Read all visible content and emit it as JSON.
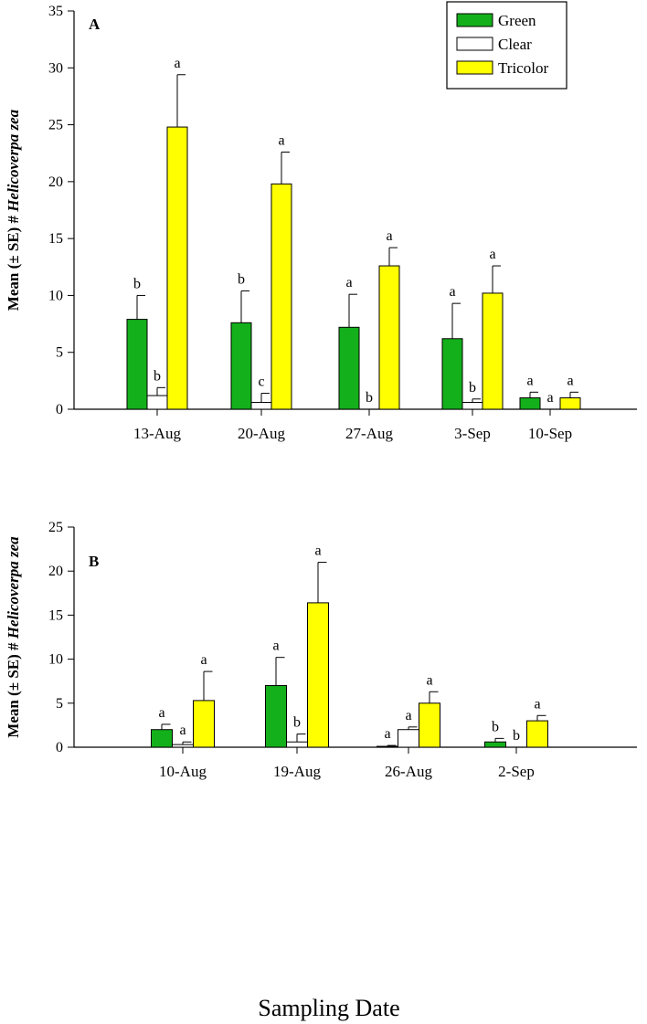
{
  "x_title": "Sampling Date",
  "legend": [
    {
      "label": "Green",
      "color": "#13b01b"
    },
    {
      "label": "Clear",
      "color": "#ffffff"
    },
    {
      "label": "Tricolor",
      "color": "#ffff00"
    }
  ],
  "chart_data": [
    {
      "type": "bar",
      "panel_label": "A",
      "ylabel": "Mean (± SE) # Helicoverpa zea",
      "ylim": [
        0,
        35
      ],
      "yticks": [
        0,
        5,
        10,
        15,
        20,
        25,
        30,
        35
      ],
      "categories": [
        "13-Aug",
        "20-Aug",
        "27-Aug",
        "3-Sep",
        "10-Sep"
      ],
      "series": [
        {
          "name": "Green",
          "values": [
            7.9,
            7.6,
            7.2,
            6.2,
            1.0
          ],
          "se": [
            2.1,
            2.8,
            2.9,
            3.1,
            0.5
          ],
          "letters": [
            "b",
            "b",
            "a",
            "a",
            "a"
          ]
        },
        {
          "name": "Clear",
          "values": [
            1.2,
            0.6,
            0,
            0.6,
            0
          ],
          "se": [
            0.7,
            0.8,
            0,
            0.3,
            0
          ],
          "letters": [
            "b",
            "c",
            "b",
            "b",
            "a"
          ]
        },
        {
          "name": "Tricolor",
          "values": [
            24.8,
            19.8,
            12.6,
            10.2,
            1.0
          ],
          "se": [
            4.6,
            2.8,
            1.6,
            2.4,
            0.5
          ],
          "letters": [
            "a",
            "a",
            "a",
            "a",
            "a"
          ]
        }
      ]
    },
    {
      "type": "bar",
      "panel_label": "B",
      "ylabel": "Mean (± SE) # Helicoverpa zea",
      "ylim": [
        0,
        25
      ],
      "yticks": [
        0,
        5,
        10,
        15,
        20,
        25
      ],
      "categories": [
        "10-Aug",
        "19-Aug",
        "26-Aug",
        "2-Sep"
      ],
      "series": [
        {
          "name": "Green",
          "values": [
            2.0,
            7.0,
            0.1,
            0.6
          ],
          "se": [
            0.6,
            3.2,
            0.1,
            0.4
          ],
          "letters": [
            "a",
            "a",
            "a",
            "b"
          ]
        },
        {
          "name": "Clear",
          "values": [
            0.3,
            0.6,
            2.0,
            0
          ],
          "se": [
            0.3,
            0.9,
            0.3,
            0
          ],
          "letters": [
            "a",
            "b",
            "a",
            "b"
          ]
        },
        {
          "name": "Tricolor",
          "values": [
            5.3,
            16.4,
            5.0,
            3.0
          ],
          "se": [
            3.3,
            4.6,
            1.3,
            0.6
          ],
          "letters": [
            "a",
            "a",
            "a",
            "a"
          ]
        }
      ]
    }
  ]
}
